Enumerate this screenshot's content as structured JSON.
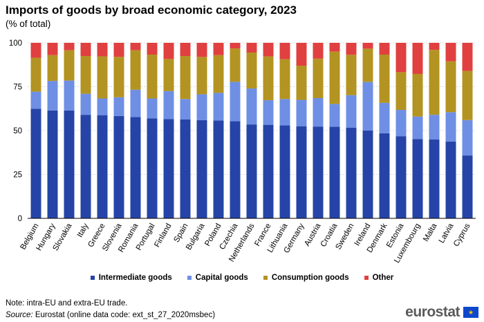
{
  "chart_data": {
    "type": "bar",
    "stacked": true,
    "title": "Imports of goods by broad economic category, 2023",
    "subtitle": "(% of total)",
    "ylim": [
      0,
      100
    ],
    "yticks": [
      0,
      25,
      50,
      75,
      100
    ],
    "categories": [
      "Belgium",
      "Hungary",
      "Slovakia",
      "Italy",
      "Greece",
      "Slovenia",
      "Romania",
      "Portugal",
      "Finland",
      "Spain",
      "Bulgaria",
      "Poland",
      "Czechia",
      "Netherlands",
      "France",
      "Lithuania",
      "Germany",
      "Austria",
      "Croatia",
      "Sweden",
      "Ireland",
      "Denmark",
      "Estonia",
      "Luxembourg",
      "Malta",
      "Latvia",
      "Cyprus"
    ],
    "series": [
      {
        "name": "Intermediate goods",
        "color": "#2644a7",
        "values": [
          62.5,
          61.5,
          61.5,
          59.0,
          58.8,
          58.3,
          57.7,
          57.0,
          56.5,
          56.3,
          56.0,
          55.8,
          55.3,
          53.5,
          53.3,
          53.0,
          52.5,
          52.3,
          52.2,
          51.7,
          50.0,
          48.5,
          46.8,
          45.2,
          45.0,
          43.8,
          35.8
        ]
      },
      {
        "name": "Capital goods",
        "color": "#6f8fe5",
        "values": [
          9.7,
          16.8,
          17.0,
          12.0,
          9.5,
          10.7,
          15.6,
          11.3,
          16.0,
          11.7,
          14.7,
          15.7,
          22.5,
          20.5,
          14.0,
          15.0,
          15.0,
          16.2,
          13.0,
          18.5,
          27.7,
          17.3,
          15.0,
          12.8,
          14.0,
          16.7,
          20.2
        ]
      },
      {
        "name": "Consumption goods",
        "color": "#b39422",
        "values": [
          19.3,
          14.7,
          17.3,
          21.5,
          24.0,
          23.0,
          22.5,
          25.0,
          18.3,
          24.5,
          21.3,
          21.5,
          19.0,
          20.5,
          25.0,
          22.7,
          19.5,
          22.5,
          29.8,
          23.0,
          19.0,
          27.5,
          21.5,
          24.3,
          37.0,
          29.0,
          28.0
        ]
      },
      {
        "name": "Other",
        "color": "#e04040",
        "values": [
          8.5,
          7.0,
          4.2,
          7.5,
          7.7,
          8.0,
          4.2,
          6.7,
          9.2,
          7.5,
          8.0,
          7.0,
          3.2,
          5.5,
          7.7,
          9.3,
          13.0,
          9.0,
          5.0,
          6.8,
          3.3,
          6.7,
          16.7,
          17.7,
          4.0,
          10.5,
          16.0
        ]
      }
    ],
    "legend_position": "bottom-center"
  },
  "footer": {
    "note": "Note: intra-EU and extra-EU trade.",
    "source_label": "Source:",
    "source_text": " Eurostat (online data code: ext_st_27_2020msbec)",
    "logo": "eurostat"
  }
}
